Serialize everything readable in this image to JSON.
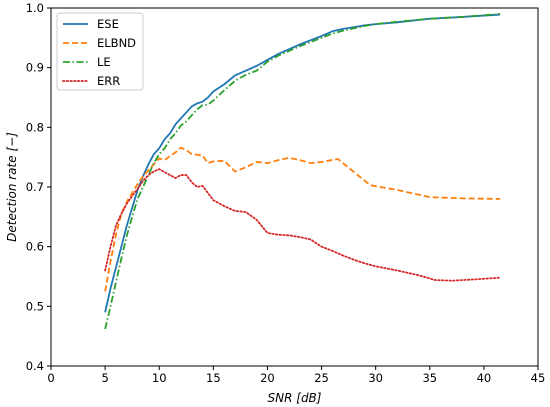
{
  "chart_data": {
    "type": "line",
    "xlabel": "SNR [dB]",
    "ylabel": "Detection rate [−]",
    "xlim": [
      0,
      45
    ],
    "ylim": [
      0.4,
      1.0
    ],
    "xticks": [
      "0",
      "5",
      "10",
      "15",
      "20",
      "25",
      "30",
      "35",
      "40",
      "45"
    ],
    "yticks": [
      "0.4",
      "0.5",
      "0.6",
      "0.7",
      "0.8",
      "0.9",
      "1.0"
    ],
    "grid": false,
    "legend_position": "top-left",
    "series": [
      {
        "name": "ESE",
        "color": "#1f77b4",
        "style": "solid",
        "points": [
          [
            5.0,
            0.49
          ],
          [
            5.5,
            0.53
          ],
          [
            6.0,
            0.565
          ],
          [
            6.5,
            0.6
          ],
          [
            7.0,
            0.635
          ],
          [
            7.5,
            0.665
          ],
          [
            8.0,
            0.695
          ],
          [
            8.5,
            0.718
          ],
          [
            9.0,
            0.738
          ],
          [
            9.5,
            0.755
          ],
          [
            10.0,
            0.765
          ],
          [
            10.5,
            0.78
          ],
          [
            11.0,
            0.79
          ],
          [
            11.5,
            0.805
          ],
          [
            12.0,
            0.815
          ],
          [
            12.5,
            0.825
          ],
          [
            13.0,
            0.835
          ],
          [
            13.5,
            0.84
          ],
          [
            14.0,
            0.843
          ],
          [
            14.5,
            0.85
          ],
          [
            15.0,
            0.86
          ],
          [
            16.0,
            0.872
          ],
          [
            17.0,
            0.887
          ],
          [
            18.0,
            0.895
          ],
          [
            19.0,
            0.903
          ],
          [
            20.0,
            0.913
          ],
          [
            21.0,
            0.923
          ],
          [
            22.0,
            0.931
          ],
          [
            23.0,
            0.939
          ],
          [
            24.0,
            0.946
          ],
          [
            25.0,
            0.953
          ],
          [
            26.0,
            0.961
          ],
          [
            27.0,
            0.965
          ],
          [
            28.0,
            0.968
          ],
          [
            29.0,
            0.971
          ],
          [
            30.0,
            0.973
          ],
          [
            32.0,
            0.976
          ],
          [
            35.0,
            0.982
          ],
          [
            38.0,
            0.985
          ],
          [
            41.5,
            0.989
          ]
        ]
      },
      {
        "name": "ELBND",
        "color": "#ff7f0e",
        "style": "dashed",
        "points": [
          [
            5.0,
            0.525
          ],
          [
            5.5,
            0.575
          ],
          [
            6.0,
            0.62
          ],
          [
            6.5,
            0.655
          ],
          [
            7.0,
            0.675
          ],
          [
            7.5,
            0.69
          ],
          [
            8.0,
            0.705
          ],
          [
            8.5,
            0.718
          ],
          [
            9.0,
            0.728
          ],
          [
            9.5,
            0.738
          ],
          [
            10.0,
            0.748
          ],
          [
            10.5,
            0.745
          ],
          [
            11.0,
            0.752
          ],
          [
            11.5,
            0.758
          ],
          [
            12.0,
            0.766
          ],
          [
            12.5,
            0.762
          ],
          [
            13.0,
            0.755
          ],
          [
            13.5,
            0.754
          ],
          [
            14.0,
            0.753
          ],
          [
            14.5,
            0.74
          ],
          [
            15.0,
            0.743
          ],
          [
            16.0,
            0.744
          ],
          [
            17.0,
            0.726
          ],
          [
            18.0,
            0.733
          ],
          [
            19.0,
            0.742
          ],
          [
            20.0,
            0.74
          ],
          [
            21.0,
            0.745
          ],
          [
            22.0,
            0.749
          ],
          [
            23.0,
            0.745
          ],
          [
            24.0,
            0.74
          ],
          [
            25.0,
            0.742
          ],
          [
            26.5,
            0.747
          ],
          [
            28.0,
            0.725
          ],
          [
            29.5,
            0.703
          ],
          [
            32.0,
            0.695
          ],
          [
            35.0,
            0.683
          ],
          [
            38.0,
            0.681
          ],
          [
            41.5,
            0.68
          ]
        ]
      },
      {
        "name": "LE",
        "color": "#2ca02c",
        "style": "dashdot",
        "points": [
          [
            5.0,
            0.462
          ],
          [
            5.5,
            0.5
          ],
          [
            6.0,
            0.54
          ],
          [
            6.5,
            0.58
          ],
          [
            7.0,
            0.618
          ],
          [
            7.5,
            0.65
          ],
          [
            8.0,
            0.68
          ],
          [
            8.5,
            0.7
          ],
          [
            9.0,
            0.72
          ],
          [
            9.5,
            0.74
          ],
          [
            10.0,
            0.755
          ],
          [
            10.5,
            0.765
          ],
          [
            11.0,
            0.78
          ],
          [
            11.5,
            0.79
          ],
          [
            12.0,
            0.803
          ],
          [
            12.5,
            0.81
          ],
          [
            13.0,
            0.82
          ],
          [
            13.5,
            0.83
          ],
          [
            14.0,
            0.837
          ],
          [
            14.5,
            0.838
          ],
          [
            15.0,
            0.845
          ],
          [
            16.0,
            0.862
          ],
          [
            17.0,
            0.878
          ],
          [
            18.0,
            0.888
          ],
          [
            19.0,
            0.895
          ],
          [
            20.0,
            0.91
          ],
          [
            21.0,
            0.92
          ],
          [
            22.0,
            0.928
          ],
          [
            23.0,
            0.936
          ],
          [
            24.0,
            0.943
          ],
          [
            25.0,
            0.95
          ],
          [
            26.0,
            0.957
          ],
          [
            27.0,
            0.962
          ],
          [
            28.0,
            0.966
          ],
          [
            29.0,
            0.97
          ],
          [
            30.0,
            0.973
          ],
          [
            32.0,
            0.977
          ],
          [
            35.0,
            0.982
          ],
          [
            38.0,
            0.985
          ],
          [
            41.5,
            0.99
          ]
        ]
      },
      {
        "name": "ERR",
        "color": "#d62728",
        "style": "dotted",
        "points": [
          [
            5.0,
            0.56
          ],
          [
            5.5,
            0.6
          ],
          [
            6.0,
            0.635
          ],
          [
            6.5,
            0.655
          ],
          [
            7.0,
            0.672
          ],
          [
            7.5,
            0.685
          ],
          [
            8.0,
            0.697
          ],
          [
            8.5,
            0.71
          ],
          [
            9.0,
            0.72
          ],
          [
            9.5,
            0.726
          ],
          [
            10.0,
            0.73
          ],
          [
            10.5,
            0.725
          ],
          [
            11.0,
            0.72
          ],
          [
            11.5,
            0.715
          ],
          [
            12.0,
            0.72
          ],
          [
            12.5,
            0.72
          ],
          [
            13.0,
            0.708
          ],
          [
            13.5,
            0.7
          ],
          [
            14.0,
            0.702
          ],
          [
            14.5,
            0.69
          ],
          [
            15.0,
            0.678
          ],
          [
            16.0,
            0.668
          ],
          [
            17.0,
            0.66
          ],
          [
            18.0,
            0.658
          ],
          [
            19.0,
            0.645
          ],
          [
            20.0,
            0.623
          ],
          [
            21.0,
            0.62
          ],
          [
            22.0,
            0.619
          ],
          [
            23.0,
            0.616
          ],
          [
            24.0,
            0.612
          ],
          [
            25.0,
            0.6
          ],
          [
            26.0,
            0.593
          ],
          [
            27.0,
            0.585
          ],
          [
            28.0,
            0.578
          ],
          [
            29.0,
            0.572
          ],
          [
            30.0,
            0.567
          ],
          [
            32.0,
            0.56
          ],
          [
            34.0,
            0.552
          ],
          [
            35.5,
            0.544
          ],
          [
            37.0,
            0.543
          ],
          [
            39.0,
            0.545
          ],
          [
            41.5,
            0.548
          ]
        ]
      }
    ]
  }
}
